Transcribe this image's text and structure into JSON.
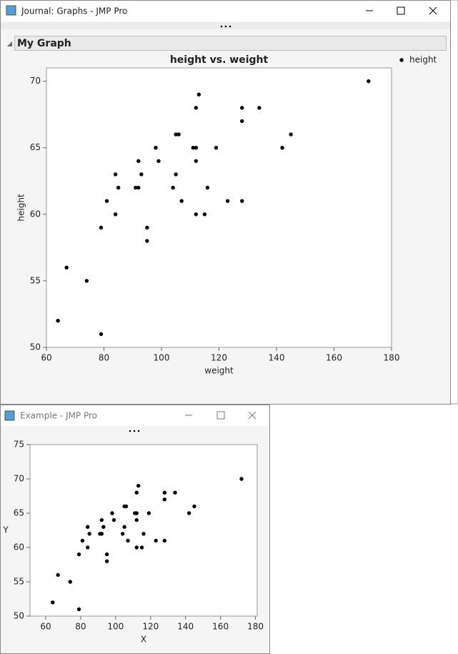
{
  "windows": [
    {
      "title": "Journal: Graphs - JMP Pro",
      "section": "My Graph"
    },
    {
      "title": "Example - JMP Pro"
    }
  ],
  "chart_data": [
    {
      "type": "scatter",
      "title": "height vs. weight",
      "x_label": "weight",
      "y_label": "height",
      "x": [
        64,
        67,
        74,
        79,
        79,
        81,
        84,
        84,
        85,
        91,
        92,
        92,
        93,
        95,
        95,
        98,
        99,
        104,
        105,
        105,
        106,
        107,
        111,
        112,
        112,
        112,
        112,
        113,
        115,
        116,
        119,
        123,
        128,
        128,
        128,
        134,
        142,
        145,
        172
      ],
      "series": [
        {
          "name": "height",
          "color": "#000000",
          "values": [
            52,
            56,
            55,
            51,
            59,
            61,
            63,
            60,
            62,
            62,
            64,
            62,
            63,
            59,
            58,
            65,
            64,
            62,
            63,
            66,
            66,
            61,
            65,
            68,
            65,
            64,
            60,
            69,
            60,
            62,
            65,
            61,
            68,
            67,
            61,
            68,
            65,
            66,
            70
          ]
        }
      ],
      "xlim": [
        60,
        180
      ],
      "xticks": [
        60,
        80,
        100,
        120,
        140,
        160,
        180
      ],
      "ylim": [
        50,
        71
      ],
      "yticks": [
        50,
        55,
        60,
        65,
        70
      ],
      "legend": "right"
    },
    {
      "type": "scatter",
      "x_label": "X",
      "y_label": "Y",
      "color": "#000000",
      "x": [
        64,
        67,
        74,
        79,
        79,
        81,
        84,
        84,
        85,
        91,
        92,
        92,
        93,
        95,
        95,
        98,
        99,
        104,
        105,
        105,
        106,
        107,
        111,
        112,
        112,
        112,
        112,
        113,
        115,
        116,
        119,
        123,
        128,
        128,
        128,
        134,
        142,
        145,
        172
      ],
      "values": [
        52,
        56,
        55,
        51,
        59,
        61,
        63,
        60,
        62,
        62,
        64,
        62,
        63,
        59,
        58,
        65,
        64,
        62,
        63,
        66,
        66,
        61,
        65,
        68,
        65,
        64,
        60,
        69,
        60,
        62,
        65,
        61,
        68,
        67,
        61,
        68,
        65,
        66,
        70
      ],
      "xlim": [
        51,
        181
      ],
      "xticks": [
        60,
        80,
        100,
        120,
        140,
        160,
        180
      ],
      "ylim": [
        50,
        75
      ],
      "yticks": [
        50,
        55,
        60,
        65,
        70,
        75
      ]
    }
  ]
}
